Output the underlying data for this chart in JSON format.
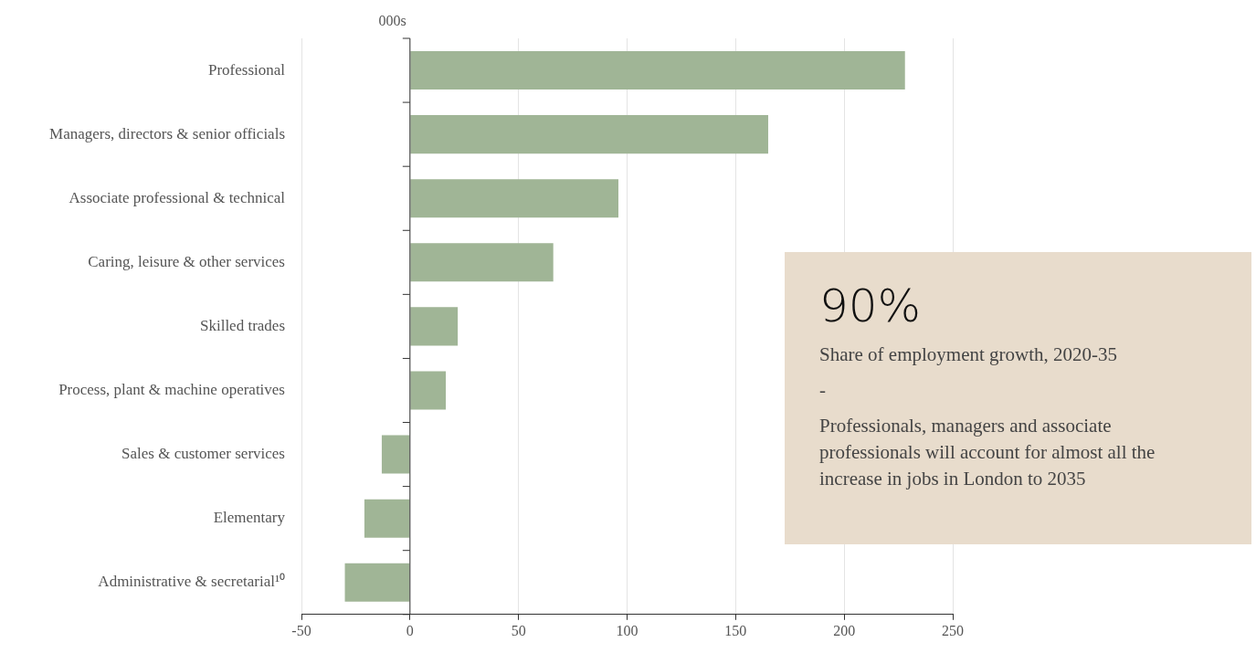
{
  "chart_data": {
    "type": "bar",
    "orientation": "horizontal",
    "xlabel": "000s",
    "categories": [
      "Professional",
      "Managers, directors & senior officials",
      "Associate professional & technical",
      "Caring, leisure & other services",
      "Skilled trades",
      "Process, plant & machine operatives",
      "Sales & customer services",
      "Elementary",
      "Administrative & secretarial¹⁰"
    ],
    "values": [
      228,
      165,
      96,
      66,
      22,
      16.5,
      -13,
      -21,
      -30
    ],
    "color": "#a0b596",
    "xlim": [
      -50,
      250
    ],
    "xticks": [
      -50,
      0,
      50,
      100,
      150,
      200,
      250
    ],
    "grid": "x",
    "legend": false,
    "annotations": [
      "90%",
      "Share of employment growth, 2020-35",
      "-",
      "Professionals, managers and associate professionals will account for almost all the increase in jobs in London to 2035"
    ]
  }
}
